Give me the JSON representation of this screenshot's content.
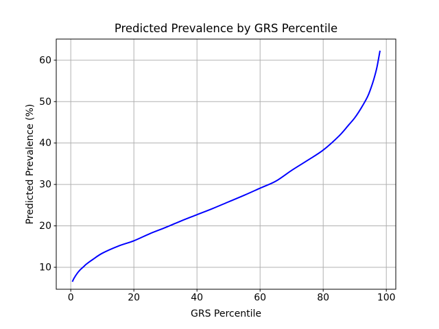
{
  "chart_data": {
    "type": "line",
    "title": "Predicted Prevalence by GRS Percentile",
    "xlabel": "GRS Percentile",
    "ylabel": "Predicted Prevalence (%)",
    "x_ticks": [
      0,
      20,
      40,
      60,
      80,
      100
    ],
    "y_ticks": [
      10,
      20,
      30,
      40,
      50,
      60
    ],
    "xlim": [
      -4.6,
      103.0
    ],
    "ylim": [
      4.7,
      65.1
    ],
    "grid": true,
    "legend": false,
    "line_color": "#0000ff",
    "line_width": 2,
    "grid_color": "#b0b0b0",
    "spine_color": "#000000",
    "background_color": "#ffffff",
    "series": [
      {
        "x": [
          0.5,
          1,
          2,
          3,
          4,
          5,
          7,
          10,
          15,
          20,
          25,
          30,
          35,
          40,
          45,
          50,
          55,
          60,
          65,
          70,
          75,
          80,
          85,
          88,
          90,
          92,
          94,
          95,
          96,
          97,
          98
        ],
        "y": [
          6.5,
          7.3,
          8.5,
          9.4,
          10.1,
          10.8,
          11.9,
          13.4,
          15.1,
          16.4,
          18.1,
          19.6,
          21.2,
          22.7,
          24.2,
          25.8,
          27.4,
          29.1,
          30.8,
          33.4,
          35.8,
          38.3,
          41.7,
          44.3,
          46.1,
          48.4,
          51.1,
          53.0,
          55.3,
          58.2,
          62.3
        ]
      }
    ]
  }
}
